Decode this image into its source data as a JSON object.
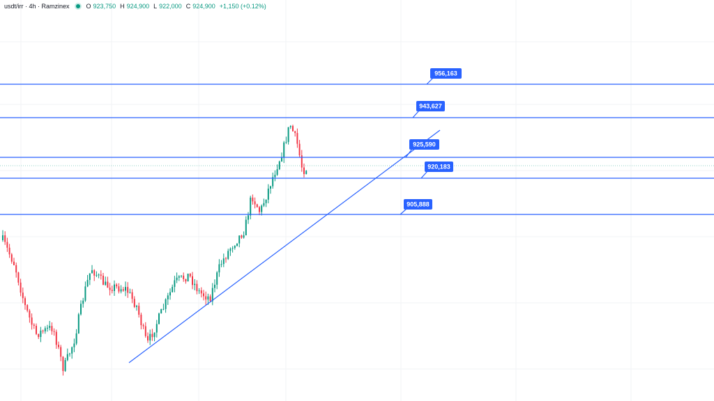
{
  "header": {
    "symbol": "usdt/irr · 4h · Ramzinex",
    "ohlc": [
      {
        "key": "O",
        "value": "923,750"
      },
      {
        "key": "H",
        "value": "924,900"
      },
      {
        "key": "L",
        "value": "922,000"
      },
      {
        "key": "C",
        "value": "924,900"
      }
    ],
    "change": "+1,150 (+0.12%)"
  },
  "levels": [
    {
      "label": "956,163"
    },
    {
      "label": "943,627"
    },
    {
      "label": "925,590"
    },
    {
      "label": "920,183"
    },
    {
      "label": "905,888"
    }
  ]
}
